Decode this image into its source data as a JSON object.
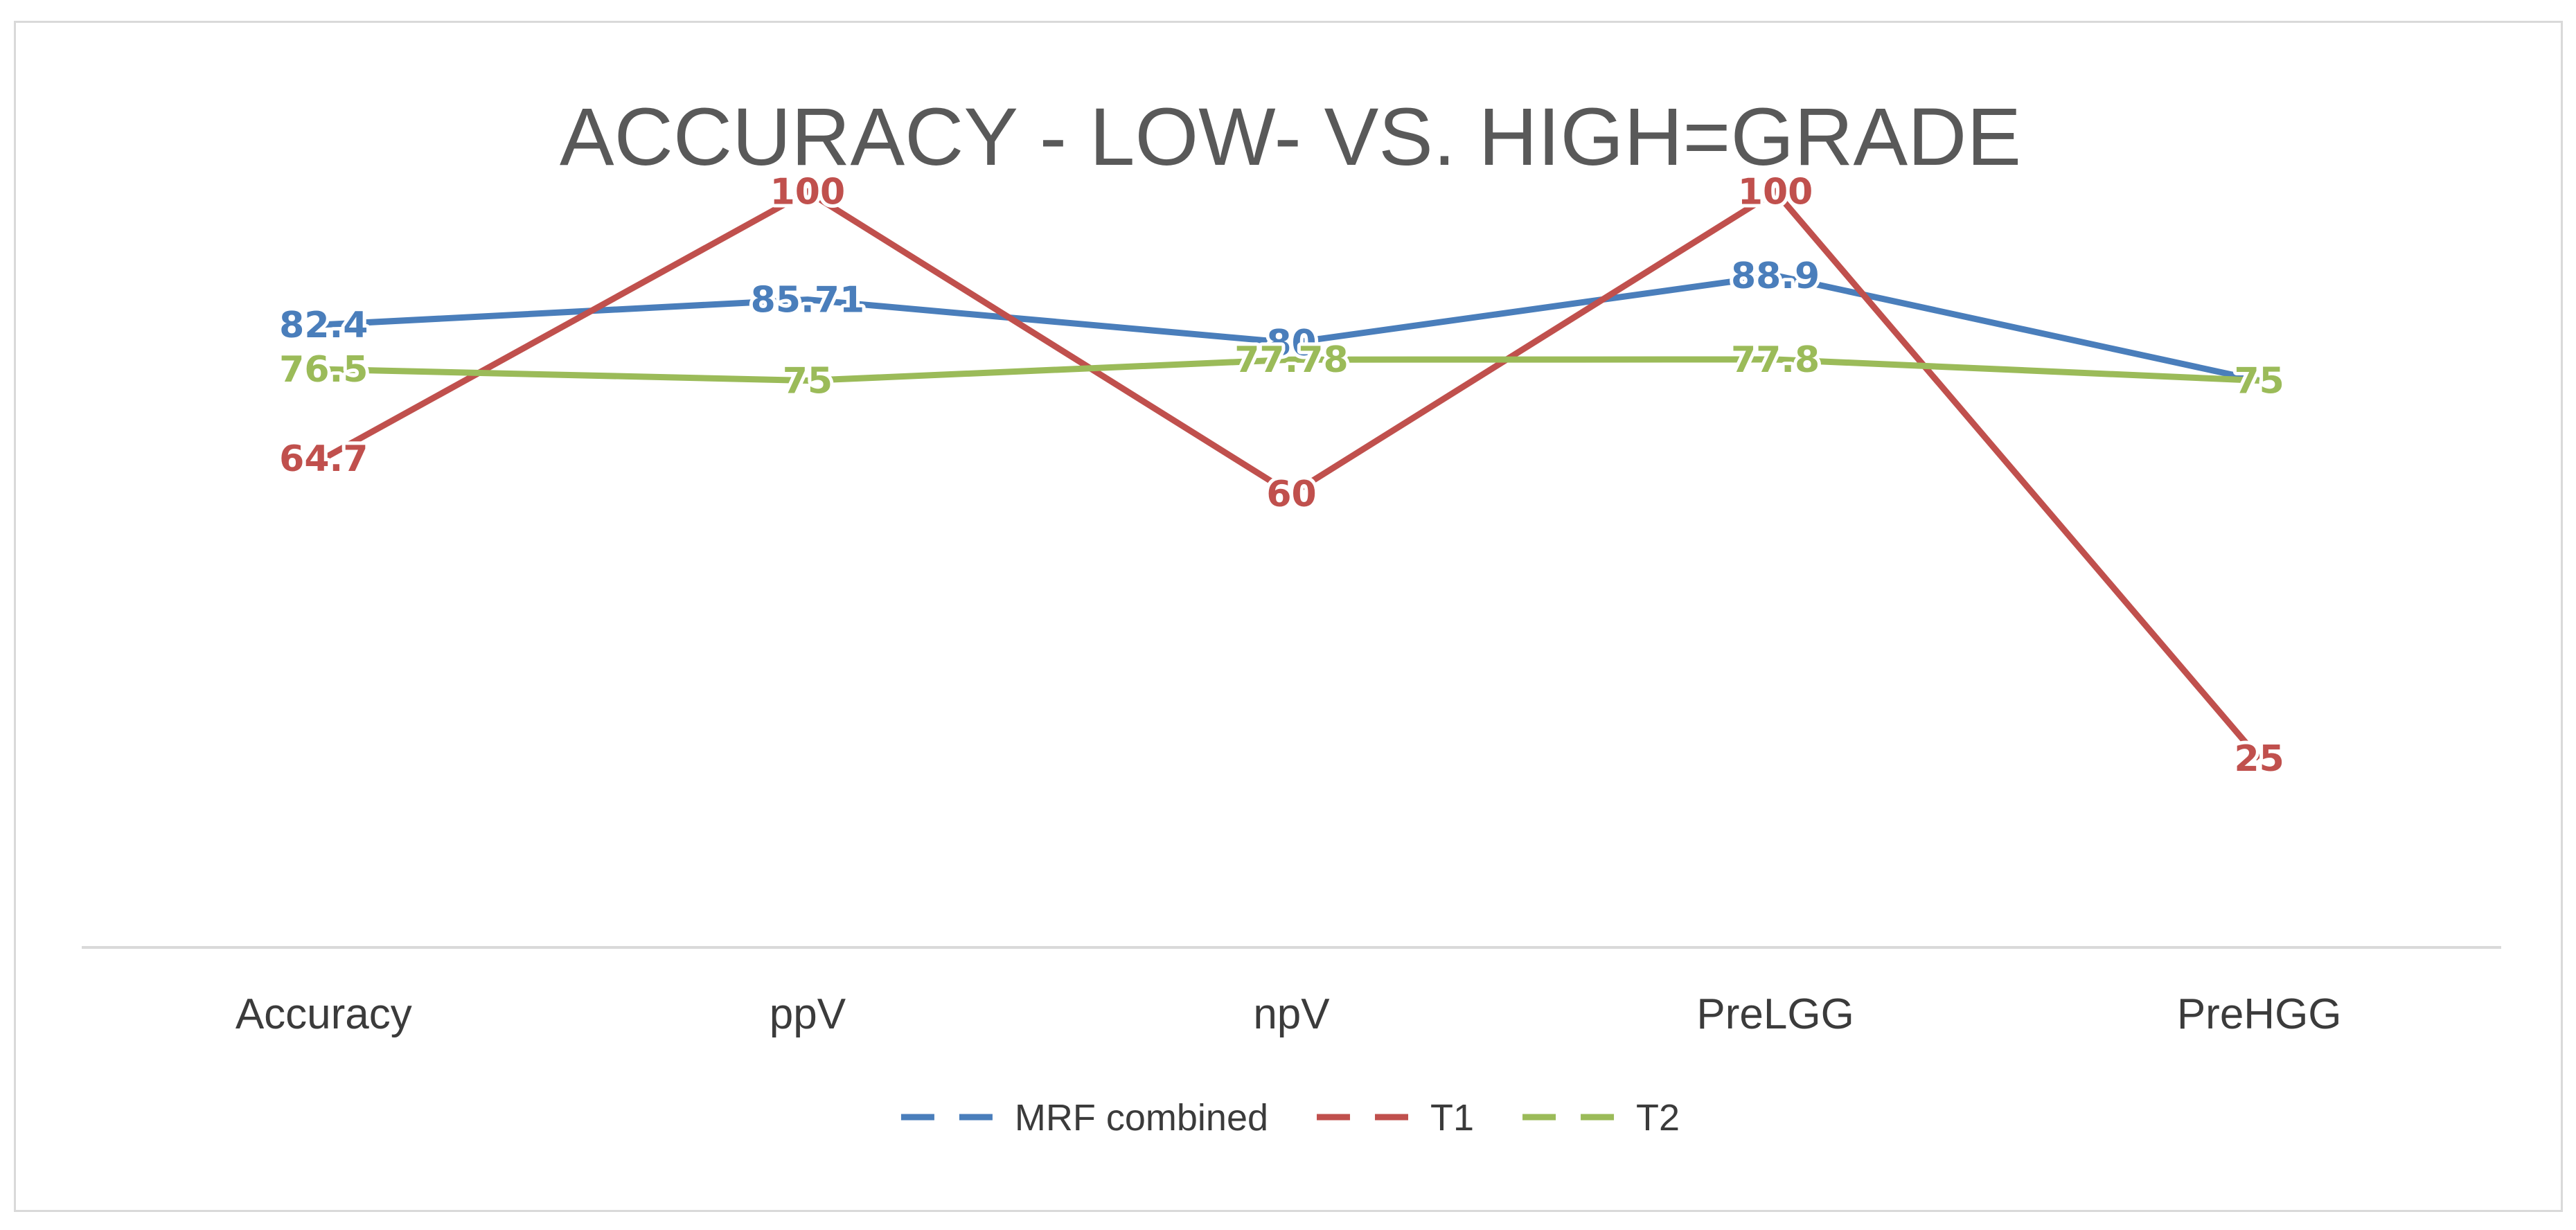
{
  "chart_data": {
    "type": "line",
    "title": "ACCURACY - LOW- VS. HIGH=GRADE",
    "categories": [
      "Accuracy",
      "ppV",
      "npV",
      "PreLGG",
      "PreHGG"
    ],
    "series": [
      {
        "name": "MRF combined",
        "color": "#4a7ebb",
        "values": [
          82.4,
          85.71,
          80,
          88.9,
          75
        ],
        "labels": [
          "82.4",
          "85.71",
          "80",
          "88.9",
          ""
        ]
      },
      {
        "name": "T1",
        "color": "#c0504d",
        "values": [
          64.7,
          100,
          60,
          100,
          25
        ],
        "labels": [
          "64.7",
          "100",
          "60",
          "100",
          "25"
        ]
      },
      {
        "name": "T2",
        "color": "#9bbb59",
        "values": [
          76.5,
          75,
          77.78,
          77.8,
          75
        ],
        "labels": [
          "76.5",
          "75",
          "77.78",
          "77.8",
          "75"
        ]
      }
    ],
    "xlabel": "",
    "ylabel": "",
    "ylim": [
      0,
      115
    ],
    "grid": false,
    "legend": "bottom"
  }
}
